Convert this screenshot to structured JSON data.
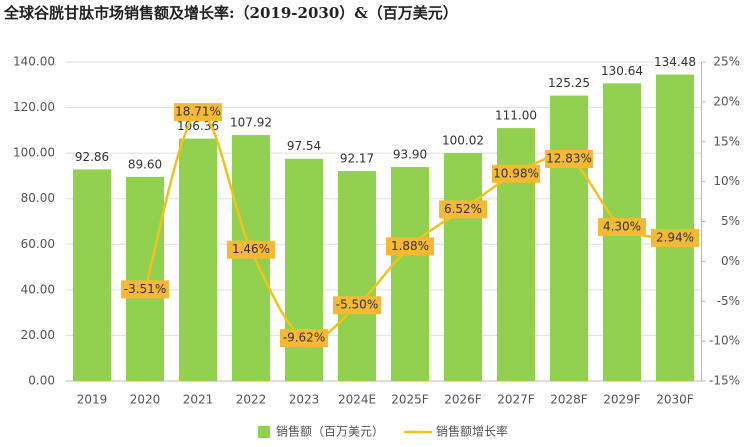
{
  "chart_data": {
    "type": "bar-line",
    "title": "全球谷胱甘肽市场销售额及增长率:（2019-2030）&（百万美元）",
    "categories": [
      "2019",
      "2020",
      "2021",
      "2022",
      "2023",
      "2024E",
      "2025F",
      "2026F",
      "2027F",
      "2028F",
      "2029F",
      "2030F"
    ],
    "series": [
      {
        "name": "销售额（百万美元）",
        "color": "#92d050",
        "type": "bar",
        "values": [
          92.86,
          89.6,
          106.36,
          107.92,
          97.54,
          92.17,
          93.9,
          100.02,
          111.0,
          125.25,
          130.64,
          134.48
        ],
        "value_labels": [
          "92.86",
          "89.60",
          "106.36",
          "107.92",
          "97.54",
          "92.17",
          "93.90",
          "100.02",
          "111.00",
          "125.25",
          "130.64",
          "134.48"
        ]
      },
      {
        "name": "销售额增长率",
        "color": "#f2c21b",
        "type": "line",
        "axis": "y2",
        "values": [
          null,
          -3.51,
          18.71,
          1.46,
          -9.62,
          -5.5,
          1.88,
          6.52,
          10.98,
          12.83,
          4.3,
          2.94
        ],
        "value_labels": [
          null,
          "-3.51%",
          "18.71%",
          "1.46%",
          "-9.62%",
          "-5.50%",
          "1.88%",
          "6.52%",
          "10.98%",
          "12.83%",
          "4.30%",
          "2.94%"
        ]
      }
    ],
    "ylim": [
      0,
      140
    ],
    "yticks": [
      {
        "value": 0,
        "label": "0.00"
      },
      {
        "value": 20,
        "label": "20.00"
      },
      {
        "value": 40,
        "label": "40.00"
      },
      {
        "value": 60,
        "label": "60.00"
      },
      {
        "value": 80,
        "label": "80.00"
      },
      {
        "value": 100,
        "label": "100.00"
      },
      {
        "value": 120,
        "label": "120.00"
      },
      {
        "value": 140,
        "label": "140.00"
      }
    ],
    "y2lim": [
      -15,
      25
    ],
    "y2ticks": [
      {
        "value": -15,
        "label": "-15%"
      },
      {
        "value": -10,
        "label": "-10%"
      },
      {
        "value": -5,
        "label": "-5%"
      },
      {
        "value": 0,
        "label": "0%"
      },
      {
        "value": 5,
        "label": "5%"
      },
      {
        "value": 10,
        "label": "10%"
      },
      {
        "value": 15,
        "label": "15%"
      },
      {
        "value": 20,
        "label": "20%"
      },
      {
        "value": 25,
        "label": "25%"
      }
    ],
    "grid": true,
    "legend": "bottom"
  }
}
